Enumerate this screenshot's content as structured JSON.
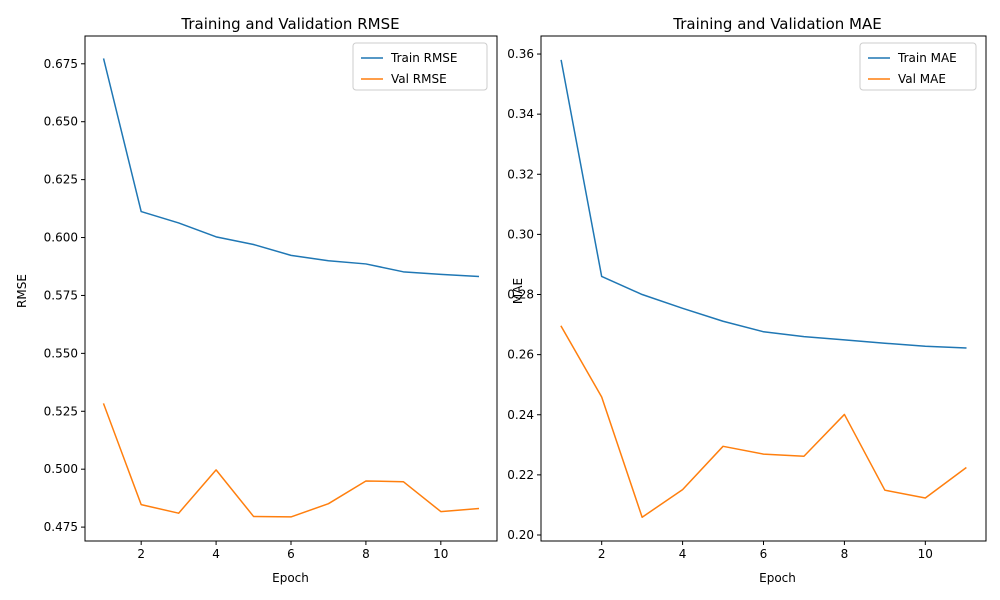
{
  "chart_data": [
    {
      "type": "line",
      "title": "Training and Validation RMSE",
      "xlabel": "Epoch",
      "ylabel": "RMSE",
      "x": [
        1,
        2,
        3,
        4,
        5,
        6,
        7,
        8,
        9,
        10,
        11
      ],
      "xlim": [
        0.5,
        11.5
      ],
      "ylim": [
        0.469,
        0.687
      ],
      "xticks": [
        2,
        4,
        6,
        8,
        10
      ],
      "xtick_labels": [
        "2",
        "4",
        "6",
        "8",
        "10"
      ],
      "yticks": [
        0.475,
        0.5,
        0.525,
        0.55,
        0.575,
        0.6,
        0.625,
        0.65,
        0.675
      ],
      "ytick_labels": [
        "0.475",
        "0.500",
        "0.525",
        "0.550",
        "0.575",
        "0.600",
        "0.625",
        "0.650",
        "0.675"
      ],
      "legend_position": "top-right",
      "grid": false,
      "series": [
        {
          "name": "Train RMSE",
          "color": "#1f77b4",
          "values": [
            0.677,
            0.6112,
            0.6063,
            0.6003,
            0.597,
            0.5923,
            0.59,
            0.5886,
            0.5852,
            0.5841,
            0.5832
          ]
        },
        {
          "name": "Val RMSE",
          "color": "#ff7f0e",
          "values": [
            0.5281,
            0.4847,
            0.481,
            0.4997,
            0.4796,
            0.4794,
            0.4851,
            0.4949,
            0.4946,
            0.4817,
            0.483
          ]
        }
      ]
    },
    {
      "type": "line",
      "title": "Training and Validation MAE",
      "xlabel": "Epoch",
      "ylabel": "MAE",
      "x": [
        1,
        2,
        3,
        4,
        5,
        6,
        7,
        8,
        9,
        10,
        11
      ],
      "xlim": [
        0.5,
        11.5
      ],
      "ylim": [
        0.198,
        0.366
      ],
      "xticks": [
        2,
        4,
        6,
        8,
        10
      ],
      "xtick_labels": [
        "2",
        "4",
        "6",
        "8",
        "10"
      ],
      "yticks": [
        0.2,
        0.22,
        0.24,
        0.26,
        0.28,
        0.3,
        0.32,
        0.34,
        0.36
      ],
      "ytick_labels": [
        "0.20",
        "0.22",
        "0.24",
        "0.26",
        "0.28",
        "0.30",
        "0.32",
        "0.34",
        "0.36"
      ],
      "legend_position": "top-right",
      "grid": false,
      "series": [
        {
          "name": "Train MAE",
          "color": "#1f77b4",
          "values": [
            0.3578,
            0.286,
            0.28,
            0.2754,
            0.2711,
            0.2676,
            0.266,
            0.2649,
            0.2638,
            0.2628,
            0.2622
          ]
        },
        {
          "name": "Val MAE",
          "color": "#ff7f0e",
          "values": [
            0.2694,
            0.2459,
            0.2059,
            0.2151,
            0.2295,
            0.2269,
            0.2262,
            0.2401,
            0.2149,
            0.2123,
            0.2223
          ]
        }
      ]
    }
  ]
}
